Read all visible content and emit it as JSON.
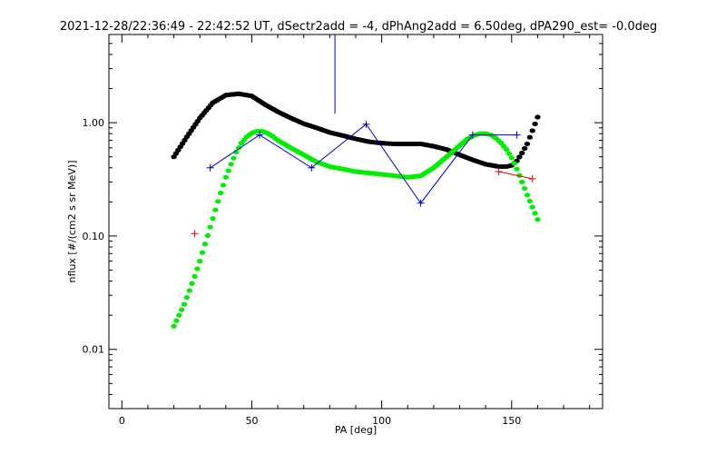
{
  "chart_data": {
    "type": "line",
    "title": "2021-12-28/22:36:49 - 22:42:52 UT, dSectr2add = -4, dPhAng2add = 6.50deg, dPA290_est=  -0.0deg",
    "xlabel": "PA [deg]",
    "ylabel": "nflux [#/(cm2 s sr MeV)]",
    "xlim": [
      -5,
      185
    ],
    "ylim": [
      0.003,
      6.0
    ],
    "y_scale": "log",
    "x_ticks": [
      0,
      50,
      100,
      150
    ],
    "x_tick_labels": [
      "0",
      "50",
      "100",
      "150"
    ],
    "y_ticks": [
      0.01,
      0.1,
      1.0
    ],
    "y_tick_labels": [
      "0.01",
      "0.10",
      "1.00"
    ],
    "grid": false,
    "legend": "none",
    "colors": {
      "black_fit": "#000000",
      "green_fit": "#00ee00",
      "blue_data": "#0000cc",
      "red_data": "#ee0000"
    },
    "series": [
      {
        "style": "thick-dotted-curve",
        "color": "#000000",
        "x": [
          20,
          25,
          30,
          35,
          40,
          45,
          50,
          55,
          60,
          65,
          70,
          75,
          80,
          85,
          90,
          95,
          100,
          105,
          110,
          115,
          120,
          125,
          130,
          135,
          140,
          145,
          148,
          150,
          152,
          154,
          156,
          158,
          160
        ],
        "y": [
          0.5,
          0.75,
          1.1,
          1.5,
          1.75,
          1.8,
          1.72,
          1.45,
          1.25,
          1.1,
          0.98,
          0.9,
          0.82,
          0.77,
          0.72,
          0.68,
          0.66,
          0.65,
          0.65,
          0.65,
          0.62,
          0.58,
          0.52,
          0.47,
          0.43,
          0.41,
          0.41,
          0.42,
          0.46,
          0.54,
          0.65,
          0.85,
          1.12
        ]
      },
      {
        "style": "thick-dotted-curve",
        "color": "#00ee00",
        "x": [
          20,
          22,
          24,
          26,
          28,
          30,
          32,
          34,
          36,
          38,
          40,
          42,
          44,
          46,
          48,
          50,
          52,
          54,
          56,
          58,
          60,
          65,
          70,
          75,
          80,
          85,
          90,
          95,
          100,
          105,
          110,
          115,
          120,
          125,
          130,
          133,
          136,
          138,
          140,
          142,
          144,
          146,
          148,
          150,
          152,
          154,
          156,
          158,
          160
        ],
        "y": [
          0.016,
          0.02,
          0.025,
          0.033,
          0.044,
          0.06,
          0.085,
          0.12,
          0.17,
          0.24,
          0.33,
          0.43,
          0.55,
          0.66,
          0.75,
          0.81,
          0.84,
          0.84,
          0.81,
          0.76,
          0.7,
          0.6,
          0.52,
          0.45,
          0.41,
          0.39,
          0.37,
          0.36,
          0.35,
          0.34,
          0.33,
          0.34,
          0.4,
          0.5,
          0.63,
          0.72,
          0.78,
          0.8,
          0.8,
          0.78,
          0.73,
          0.66,
          0.58,
          0.49,
          0.39,
          0.3,
          0.23,
          0.18,
          0.14
        ]
      },
      {
        "style": "line-plus",
        "color": "#0000cc",
        "x": [
          34,
          53,
          73,
          94,
          115,
          135,
          152
        ],
        "y": [
          0.4,
          0.78,
          0.4,
          0.97,
          0.195,
          0.78,
          0.78
        ]
      },
      {
        "style": "line-plus",
        "color": "#ee0000",
        "x": [
          28,
          145,
          158
        ],
        "y": [
          0.105,
          0.37,
          0.32
        ]
      }
    ],
    "annotations": [
      {
        "style": "vertical-line",
        "color": "#0000cc",
        "x": 82,
        "y_from": 1.2,
        "y_to": 6.0
      }
    ]
  }
}
